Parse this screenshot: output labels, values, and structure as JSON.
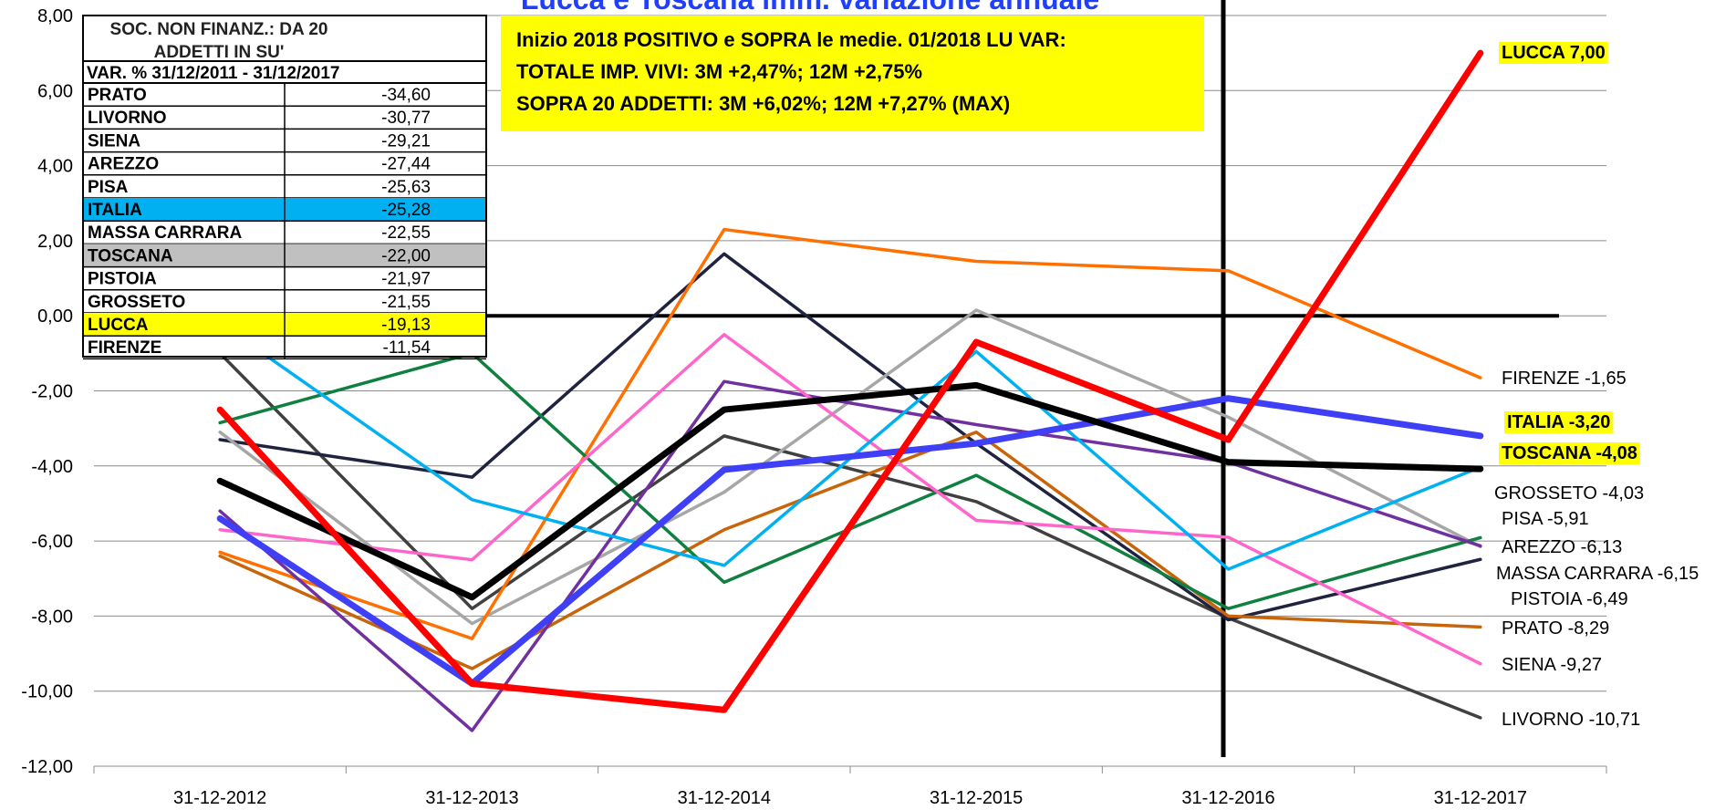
{
  "chart_data": {
    "type": "line",
    "title": "Lucca e Toscana imm. variazione annuale",
    "categories": [
      "31-12-2012",
      "31-12-2013",
      "31-12-2014",
      "31-12-2015",
      "31-12-2016",
      "31-12-2017"
    ],
    "ylim": [
      -12,
      8
    ],
    "yticks": [
      {
        "value": -12,
        "label": "-12,00"
      },
      {
        "value": -10,
        "label": "-10,00"
      },
      {
        "value": -8,
        "label": "-8,00"
      },
      {
        "value": -6,
        "label": "-6,00"
      },
      {
        "value": -4,
        "label": "-4,00"
      },
      {
        "value": -2,
        "label": "-2,00"
      },
      {
        "value": 0,
        "label": "0,00"
      },
      {
        "value": 2,
        "label": "2,00"
      },
      {
        "value": 4,
        "label": "4,00"
      },
      {
        "value": 6,
        "label": "6,00"
      },
      {
        "value": 8,
        "label": "8,00"
      }
    ],
    "grid": true,
    "series": [
      {
        "name": "LIVORNO",
        "color": "#404040",
        "values": [
          -1.0,
          -7.8,
          -3.2,
          -4.95,
          -8.05,
          -10.71
        ],
        "end_label": "LIVORNO -10,71",
        "highlight": false
      },
      {
        "name": "PISTOIA",
        "color": "#1f2340",
        "values": [
          -3.3,
          -4.3,
          1.65,
          -3.4,
          -8.1,
          -6.49
        ],
        "end_label": "PISTOIA -6,49",
        "highlight": false
      },
      {
        "name": "MASSA CARRARA",
        "color": "#a6a6a6",
        "values": [
          -3.1,
          -8.2,
          -4.7,
          0.15,
          -2.7,
          -6.15
        ],
        "end_label": "MASSA CARRARA -6,15",
        "highlight": false
      },
      {
        "name": "PRATO",
        "color": "#c8640a",
        "values": [
          -6.4,
          -9.4,
          -5.7,
          -3.1,
          -8.0,
          -8.29
        ],
        "end_label": "PRATO -8,29",
        "highlight": false
      },
      {
        "name": "FIRENZE",
        "color": "#ff7000",
        "values": [
          -6.3,
          -8.6,
          2.3,
          1.45,
          1.2,
          -1.65
        ],
        "end_label": "FIRENZE -1,65",
        "highlight": false
      },
      {
        "name": "PISA",
        "color": "#108040",
        "values": [
          -2.85,
          -1.0,
          -7.1,
          -4.25,
          -7.8,
          -5.91
        ],
        "end_label": "PISA -5,91",
        "highlight": false
      },
      {
        "name": "AREZZO",
        "color": "#7030a0",
        "values": [
          -5.2,
          -11.05,
          -1.75,
          -2.9,
          -3.9,
          -6.13
        ],
        "end_label": "AREZZO -6,13",
        "highlight": false
      },
      {
        "name": "SIENA",
        "color": "#ff66cc",
        "values": [
          -5.7,
          -6.5,
          -0.5,
          -5.45,
          -5.9,
          -9.27
        ],
        "end_label": "SIENA -9,27",
        "highlight": false
      },
      {
        "name": "GROSSETO",
        "color": "#00b0f0",
        "values": [
          -0.2,
          -4.9,
          -6.65,
          -0.95,
          -6.75,
          -4.03
        ],
        "end_label": "GROSSETO -4,03",
        "highlight": false
      },
      {
        "name": "ITALIA",
        "color": "#3f3ff5",
        "values": [
          -5.4,
          -9.8,
          -4.1,
          -3.4,
          -2.2,
          -3.2
        ],
        "end_label": "ITALIA -3,20",
        "highlight": true
      },
      {
        "name": "TOSCANA",
        "color": "#000000",
        "values": [
          -4.4,
          -7.5,
          -2.5,
          -1.85,
          -3.9,
          -4.08
        ],
        "end_label": "TOSCANA -4,08",
        "highlight": true
      },
      {
        "name": "LUCCA",
        "color": "#ff0000",
        "values": [
          -2.5,
          -9.8,
          -10.5,
          -0.7,
          -3.3,
          7.0
        ],
        "end_label": "LUCCA 7,00",
        "highlight": true
      }
    ],
    "table": {
      "title": [
        "SOC. NON FINANZ.:  DA 20",
        "ADDETTI IN SU'"
      ],
      "header": "VAR. %  31/12/2011 - 31/12/2017",
      "rows": [
        {
          "name": "PRATO",
          "value": "-34,60"
        },
        {
          "name": "LIVORNO",
          "value": "-30,77"
        },
        {
          "name": "SIENA",
          "value": "-29,21"
        },
        {
          "name": "AREZZO",
          "value": "-27,44"
        },
        {
          "name": "PISA",
          "value": "-25,63"
        },
        {
          "name": "ITALIA",
          "value": "-25,28",
          "color": "#00b0f0"
        },
        {
          "name": "MASSA CARRARA",
          "value": "-22,55"
        },
        {
          "name": "TOSCANA",
          "value": "-22,00",
          "color": "#c0c0c0"
        },
        {
          "name": "PISTOIA",
          "value": "-21,97"
        },
        {
          "name": "GROSSETO",
          "value": "-21,55"
        },
        {
          "name": "LUCCA",
          "value": "-19,13",
          "color": "#ffff00"
        },
        {
          "name": "FIRENZE",
          "value": "-11,54"
        }
      ]
    },
    "note": [
      "Inizio 2018 POSITIVO  e SOPRA le medie. 01/2018 LU VAR:",
      "TOTALE IMP. VIVI:        3M +2,47%; 12M +2,75%",
      "SOPRA 20 ADDETTI:    3M  +6,02%; 12M +7,27% (MAX)"
    ]
  }
}
